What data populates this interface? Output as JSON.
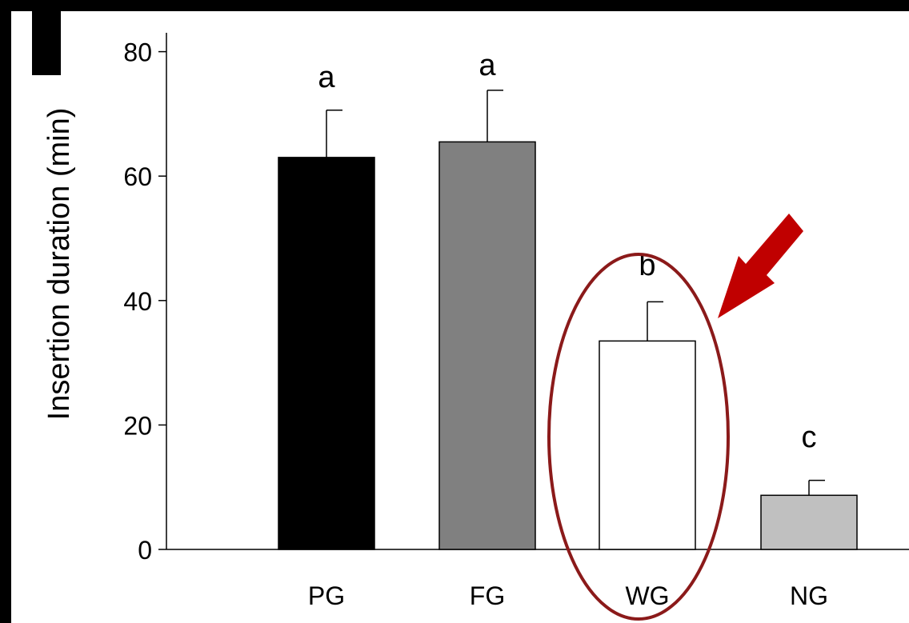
{
  "chart_data": {
    "type": "bar",
    "title": "",
    "xlabel": "",
    "ylabel": "Insertion duration (min)",
    "ylim": [
      0,
      84
    ],
    "yticks": [
      0,
      20,
      40,
      60,
      80
    ],
    "categories": [
      "PG",
      "FG",
      "WG",
      "NG"
    ],
    "values": [
      63,
      65.5,
      33.5,
      8.7
    ],
    "errors": [
      7.6,
      8.3,
      6.3,
      2.4
    ],
    "significance_letters": [
      "a",
      "a",
      "b",
      "c"
    ],
    "bar_colors": [
      "#000000",
      "#808080",
      "#ffffff",
      "#c0c0c0"
    ],
    "grid": false,
    "legend": "none",
    "annotation": {
      "highlight": "WG",
      "ellipse_color": "#8b1a1a",
      "arrow_color": "#c00000"
    }
  }
}
